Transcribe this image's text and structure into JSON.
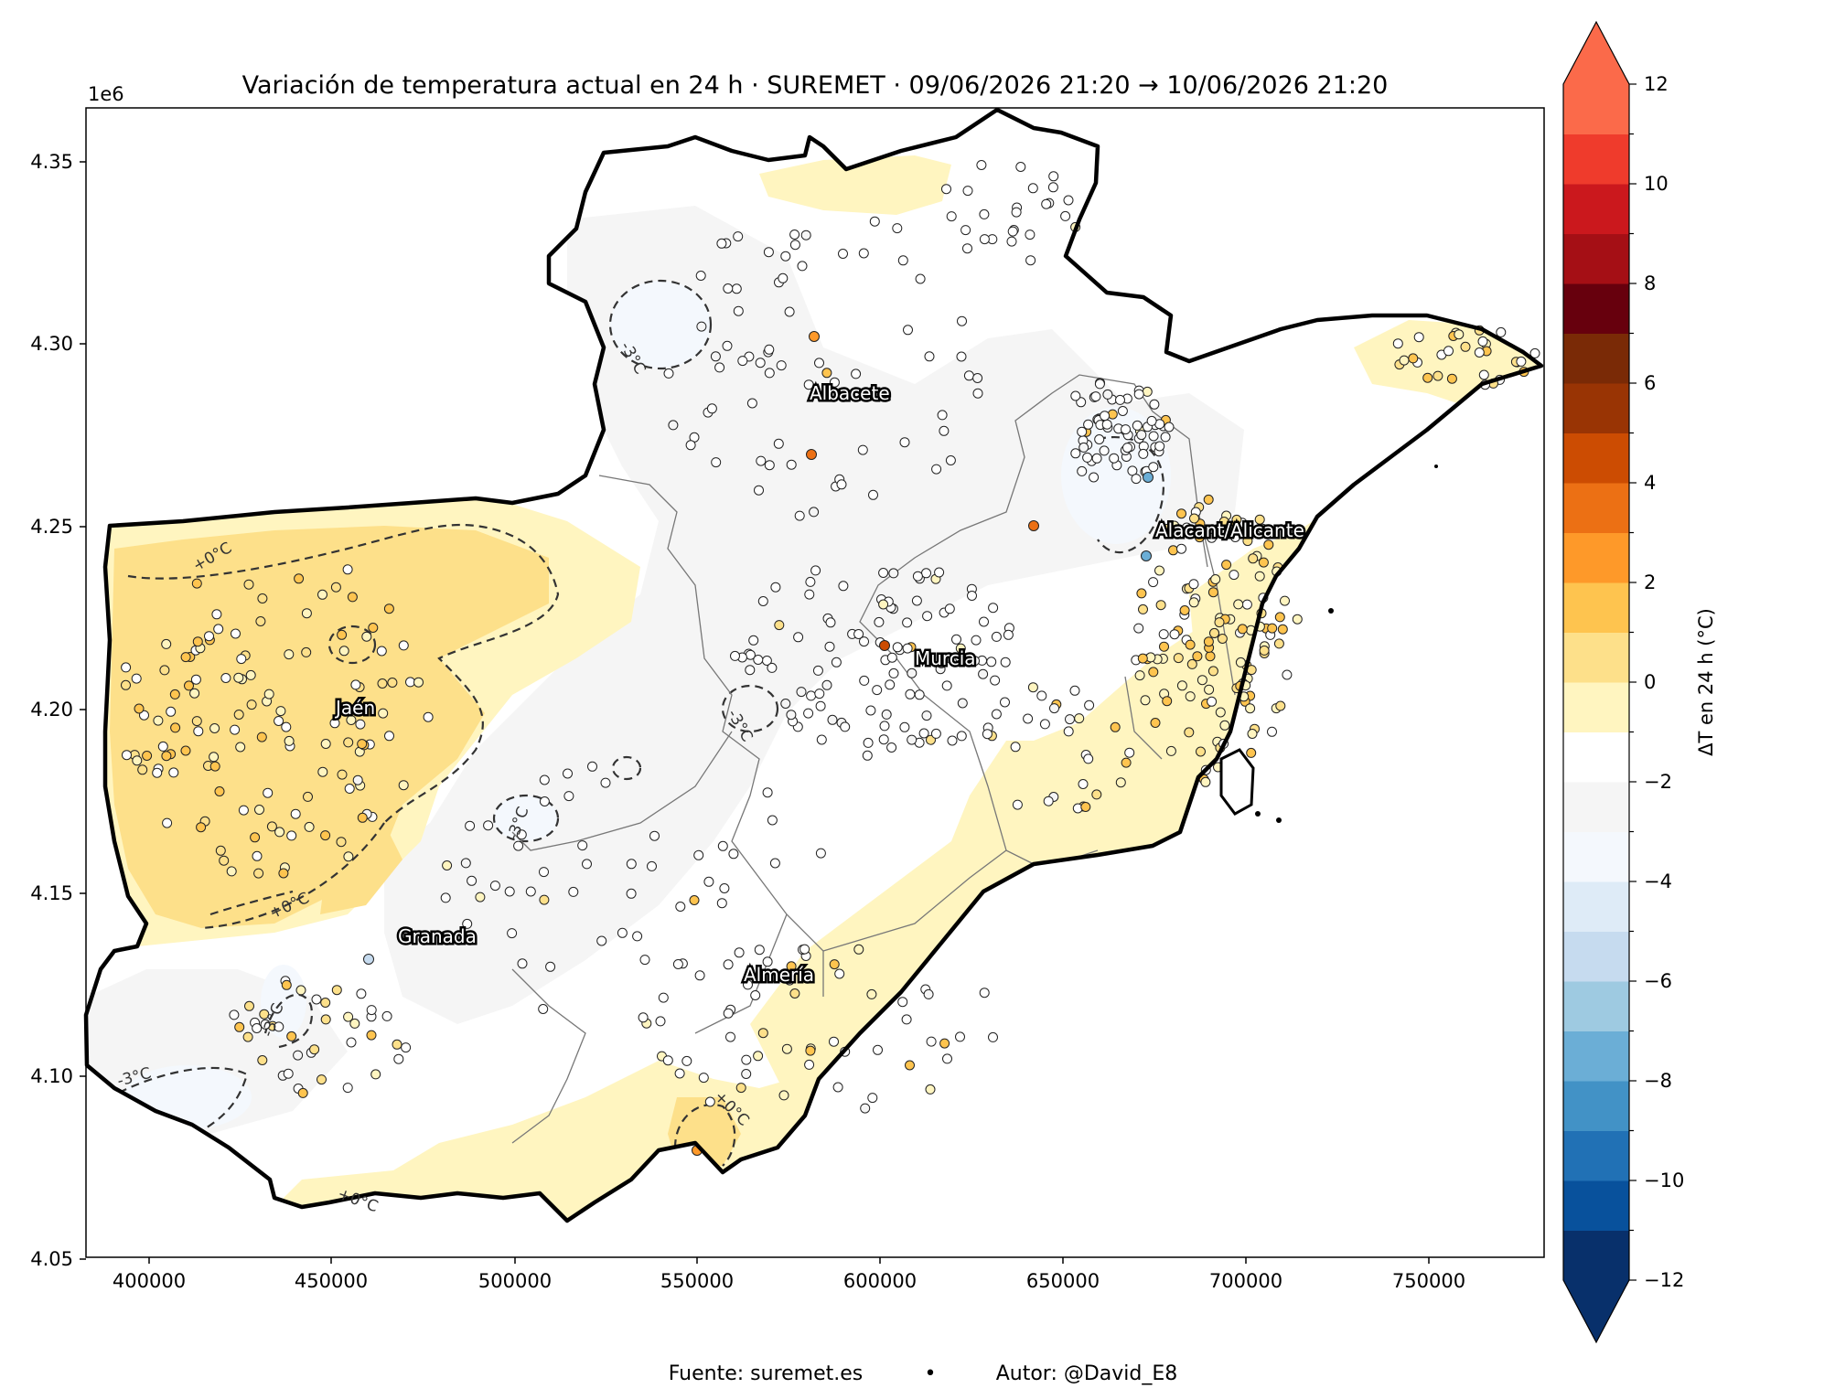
{
  "title": "Variación de temperatura actual en 24 h · SUREMET · 09/06/2026 21:20 → 10/06/2026 21:20",
  "footer": {
    "source": "Fuente: suremet.es",
    "separator": "•",
    "author": "Autor: @David_E8"
  },
  "axes": {
    "y_offset_label": "1e6",
    "x_ticks": [
      "400000",
      "450000",
      "500000",
      "550000",
      "600000",
      "650000",
      "700000",
      "750000"
    ],
    "y_ticks": [
      "4.35",
      "4.30",
      "4.25",
      "4.20",
      "4.15",
      "4.10",
      "4.05"
    ]
  },
  "colorbar": {
    "label": "ΔT en 24 h (°C)",
    "tick_labels": [
      "12",
      "10",
      "8",
      "6",
      "4",
      "2",
      "0",
      "−2",
      "−4",
      "−6",
      "−8",
      "−10",
      "−12"
    ],
    "levels": [
      -12,
      -11,
      -10,
      -9,
      -8,
      -7,
      -6,
      -5,
      -4,
      -3,
      -2,
      -1,
      0,
      1,
      2,
      3,
      4,
      5,
      6,
      7,
      8,
      9,
      10,
      11,
      12
    ],
    "colors": [
      "#08306b",
      "#08519c",
      "#2171b5",
      "#4292c6",
      "#6baed6",
      "#9ecae1",
      "#c6dbef",
      "#deebf7",
      "#f4f8fd",
      "#f5f5f5",
      "#ffffff",
      "#fff5c0",
      "#fde08a",
      "#fec44f",
      "#fe9929",
      "#ec7014",
      "#cc4c02",
      "#993404",
      "#7a2a06",
      "#67000d",
      "#a50f15",
      "#cb181d",
      "#ef3b2c",
      "#fb6a4a"
    ],
    "extend_low_color": "#08306b",
    "extend_high_color": "#fb6a4a"
  },
  "cities": [
    {
      "name": "Albacete"
    },
    {
      "name": "Alacant/Alicante"
    },
    {
      "name": "Murcia"
    },
    {
      "name": "Jaén"
    },
    {
      "name": "Granada"
    },
    {
      "name": "Almería"
    }
  ],
  "contour_labels": [
    "+0°C",
    "+0°C",
    "-3°C",
    "-3°C",
    "-3°C",
    "-3°C",
    "-3°C",
    "+0°C",
    "+0°C"
  ],
  "colors": {
    "warm_fill": "#fde08a",
    "light_warm_fill": "#fff5c0",
    "cool_fill": "#f5f5f5",
    "cold_fill": "#f4f8fd",
    "region_outline": "#000000",
    "province_line": "#777777"
  }
}
